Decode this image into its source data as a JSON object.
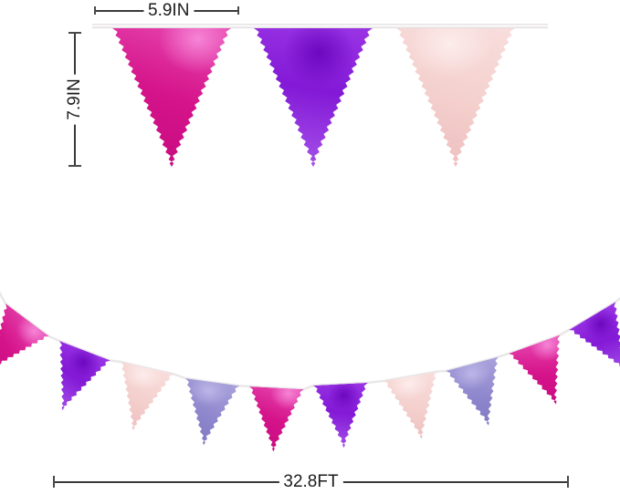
{
  "page": {
    "type": "product-size-diagram",
    "product": "metallic triangle pennant banner bunting",
    "background": "#ffffff",
    "line_color": "#3a3a3c",
    "text_color": "#1c1c1e",
    "ribbon_color": "#f6f4f5",
    "annotations": {
      "flag_width": "5.9IN",
      "flag_height": "7.9IN",
      "banner_length": "32.8FT"
    },
    "palette": {
      "hot_pink": "#d5138a",
      "purple": "#8019d4",
      "rose_gold": "#f3cdca",
      "lavender": "#8b84ca"
    },
    "top_banner": {
      "flag_colors": [
        "hot_pink",
        "purple",
        "rose_gold"
      ]
    },
    "bottom_banner": {
      "flag_colors": [
        "hot_pink",
        "purple",
        "rose_gold",
        "lavender",
        "hot_pink",
        "purple",
        "rose_gold",
        "lavender",
        "hot_pink",
        "purple"
      ]
    }
  }
}
